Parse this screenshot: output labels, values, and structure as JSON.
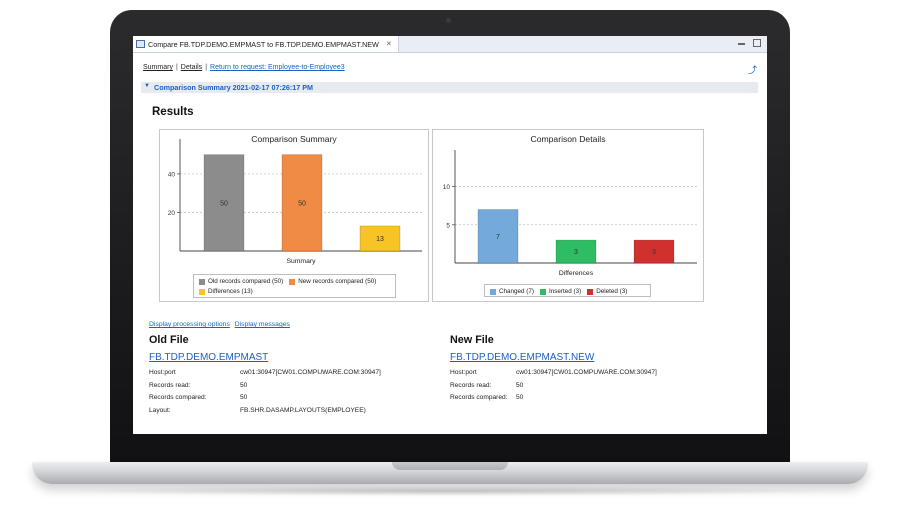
{
  "window": {
    "tab_title": "Compare FB.TDP.DEMO.EMPMAST to FB.TDP.DEMO.EMPMAST.NEW",
    "tab_close": "✕"
  },
  "nav": {
    "summary": "Summary",
    "separator": "|",
    "details": "Details",
    "return_link": "Return to request: Employee-to-Employee3"
  },
  "section": {
    "title": "Comparison Summary 2021-02-17 07:26:17 PM",
    "toggle": "▼"
  },
  "results_title": "Results",
  "chart_data": [
    {
      "type": "bar",
      "title": "Comparison Summary",
      "xlabel": "Summary",
      "ylabel": "",
      "ylim": [
        0,
        55
      ],
      "yticks": [
        20,
        40
      ],
      "grid": true,
      "legend_position": "bottom",
      "series": [
        {
          "name": "Old records compared (50)",
          "value": 50,
          "label": "50",
          "color": "#8c8c8c"
        },
        {
          "name": "New records compared (50)",
          "value": 50,
          "label": "50",
          "color": "#ef8b45"
        },
        {
          "name": "Differences (13)",
          "value": 13,
          "label": "13",
          "color": "#f7c325"
        }
      ]
    },
    {
      "type": "bar",
      "title": "Comparison Details",
      "xlabel": "Differences",
      "ylabel": "",
      "ylim": [
        0,
        14
      ],
      "yticks": [
        5,
        10
      ],
      "grid": true,
      "legend_position": "bottom",
      "series": [
        {
          "name": "Changed (7)",
          "value": 7,
          "label": "7",
          "color": "#74a9dc"
        },
        {
          "name": "Inserted (3)",
          "value": 3,
          "label": "3",
          "color": "#2ebd62"
        },
        {
          "name": "Deleted (3)",
          "value": 3,
          "label": "3",
          "color": "#d0312d"
        }
      ]
    }
  ],
  "processing_links": {
    "options": "Display processing options",
    "messages": "Display messages"
  },
  "old_file": {
    "heading": "Old File",
    "name": "FB.TDP.DEMO.EMPMAST",
    "rows": [
      {
        "key": "Host:port",
        "value": "cw01:30947[CW01.COMPUWARE.COM:30947]"
      },
      {
        "key": "Records read:",
        "value": "50"
      },
      {
        "key": "Records compared:",
        "value": "50"
      },
      {
        "key": "Layout:",
        "value": "FB.SHR.DASAMP.LAYOUTS(EMPLOYEE)"
      }
    ]
  },
  "new_file": {
    "heading": "New File",
    "name": "FB.TDP.DEMO.EMPMAST.NEW",
    "rows": [
      {
        "key": "Host:port",
        "value": "cw01:30947[CW01.COMPUWARE.COM:30947]"
      },
      {
        "key": "Records read:",
        "value": "50"
      },
      {
        "key": "Records compared:",
        "value": "50"
      }
    ]
  },
  "icons": {
    "share": "⤴"
  }
}
